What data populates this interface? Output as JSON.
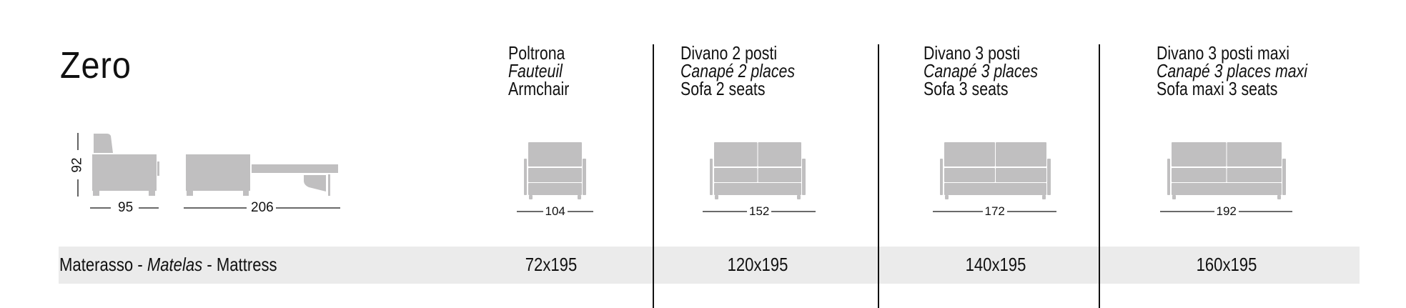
{
  "title": "Zero",
  "side_view": {
    "height": "92",
    "depth": "95",
    "open_length": "206"
  },
  "columns": [
    {
      "it": "Poltrona",
      "fr": "Fauteuil",
      "en": "Armchair",
      "width": "104",
      "mattress": "72x195",
      "seats": 1
    },
    {
      "it": "Divano 2 posti",
      "fr": "Canapé 2 places",
      "en": "Sofa 2 seats",
      "width": "152",
      "mattress": "120x195",
      "seats": 2
    },
    {
      "it": "Divano 3 posti",
      "fr": "Canapé 3 places",
      "en": "Sofa 3 seats",
      "width": "172",
      "mattress": "140x195",
      "seats": 2
    },
    {
      "it": "Divano 3 posti maxi",
      "fr": "Canapé 3 places maxi",
      "en": "Sofa maxi 3 seats",
      "width": "192",
      "mattress": "160x195",
      "seats": 2
    }
  ],
  "mattress_row": {
    "it": "Materasso",
    "sep1": " - ",
    "fr": "Matelas",
    "sep2": " - ",
    "en": "Mattress"
  },
  "colors": {
    "sofa_fill": "#c0bfc0",
    "band": "#ebebeb",
    "text": "#111111"
  }
}
